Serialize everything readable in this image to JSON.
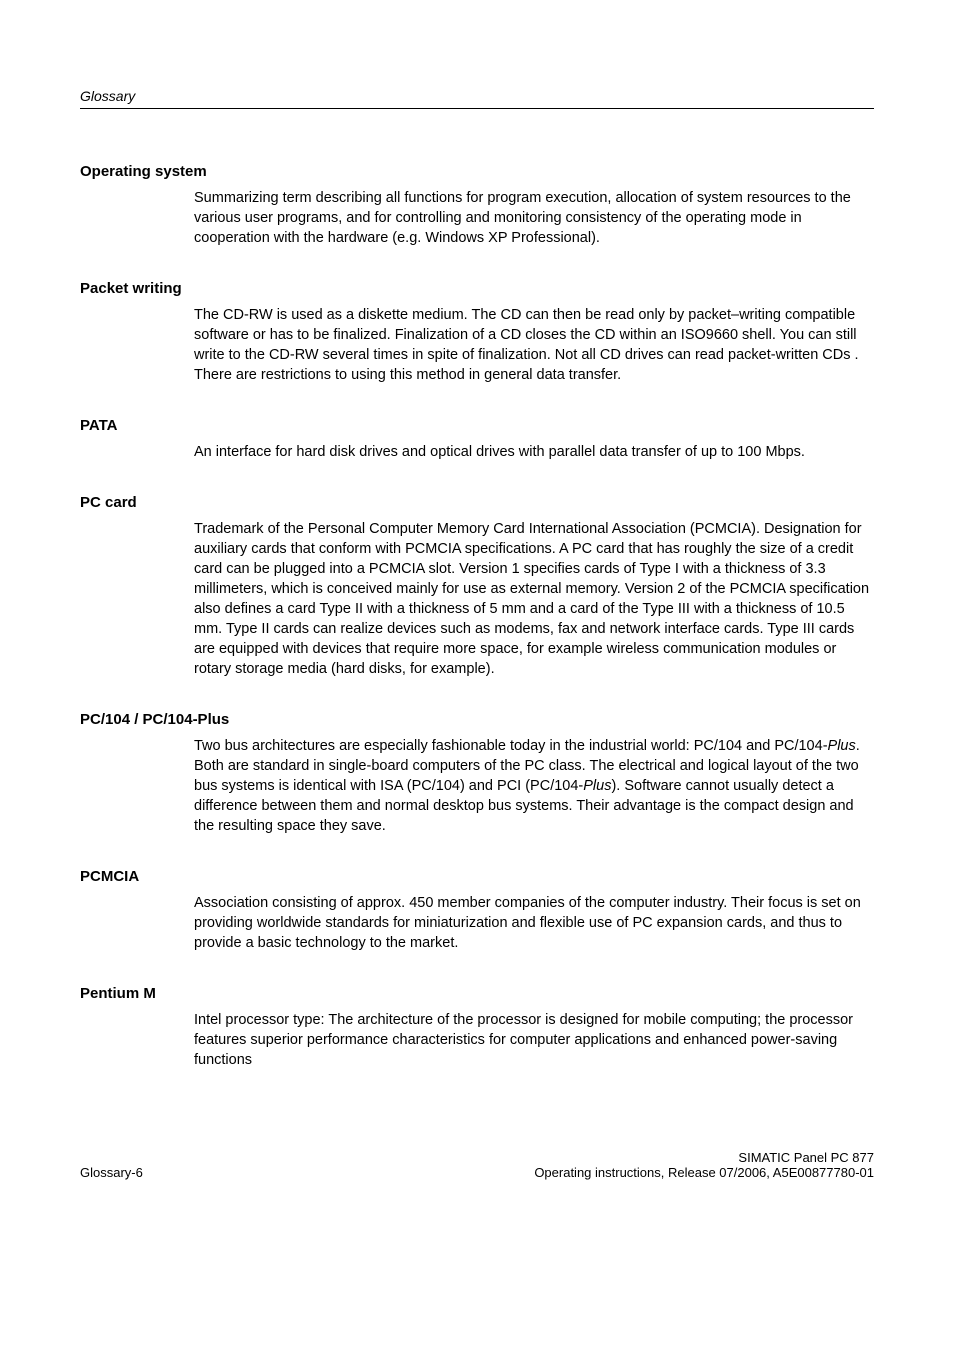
{
  "header": {
    "label": "Glossary"
  },
  "terms": [
    {
      "heading": "Operating system",
      "body": "Summarizing term describing all functions for program execution, allocation of system resources to the various user programs, and for controlling and monitoring consistency of the operating mode in cooperation with the hardware (e.g. Windows XP Professional)."
    },
    {
      "heading": "Packet writing",
      "body": "The CD-RW is used as a diskette medium. The CD can then be read only by packet–writing compatible software or has to be finalized. Finalization of a CD closes the CD within an ISO9660 shell. You can still write to the CD-RW several times in spite of finalization. Not all CD drives can read packet-written CDs . There are restrictions to using this method in general data transfer."
    },
    {
      "heading": "PATA",
      "body": "An interface for hard disk drives and optical drives with parallel data transfer of up to 100 Mbps."
    },
    {
      "heading": "PC card",
      "body": "Trademark of the Personal Computer Memory Card International Association (PCMCIA). Designation for auxiliary cards that conform with PCMCIA specifications. A PC card that has roughly the size of a credit card can be plugged into a PCMCIA slot. Version 1 specifies cards of Type I with a thickness of 3.3 millimeters, which is conceived mainly for use as external memory. Version 2 of the PCMCIA specification also defines a card Type II with a thickness of 5 mm and a card of the Type III with a thickness of 10.5 mm. Type II cards can realize devices such as modems, fax and network interface cards. Type III cards are equipped with devices that require more space, for example wireless communication modules or rotary storage media (hard disks, for example)."
    },
    {
      "heading": "PC/104 / PC/104-Plus",
      "body_special": {
        "pre1": "Two bus architectures are especially fashionable today in the industrial world: PC/104 and PC/104-",
        "italic1": "Plus",
        "mid": ". Both are standard in single-board computers of the PC class. The electrical and logical layout of the two bus systems is identical with ISA (PC/104) and PCI (PC/104-",
        "italic2": "Plus",
        "post": "). Software cannot usually detect a difference between them and normal desktop bus systems. Their advantage is the compact design and the resulting space they save."
      }
    },
    {
      "heading": "PCMCIA",
      "body": "Association consisting of approx. 450 member companies of the computer industry. Their focus is set on providing worldwide standards for miniaturization and flexible use of PC expansion cards, and thus to provide a basic technology to the market."
    },
    {
      "heading": "Pentium M",
      "body": "Intel processor type: The architecture of the processor is designed for mobile computing; the processor features superior performance characteristics for computer applications and enhanced power-saving functions"
    }
  ],
  "footer": {
    "left": "Glossary-6",
    "right_line1": "SIMATIC Panel PC 877",
    "right_line2": "Operating instructions, Release 07/2006, A5E00877780-01"
  }
}
